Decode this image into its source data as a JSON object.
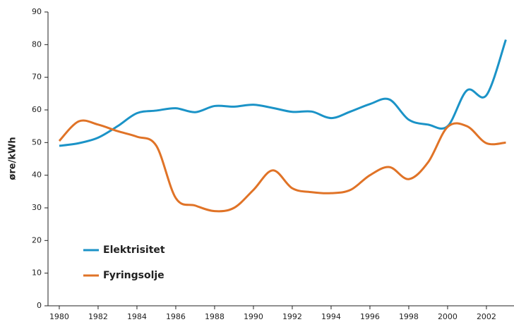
{
  "chart_data": {
    "type": "line",
    "y_label": "øre/kWh",
    "x": [
      1980,
      1981,
      1982,
      1983,
      1984,
      1985,
      1986,
      1987,
      1988,
      1989,
      1990,
      1991,
      1992,
      1993,
      1994,
      1995,
      1996,
      1997,
      1998,
      1999,
      2000,
      2001,
      2002,
      2003
    ],
    "series": [
      {
        "name": "Elektrisitet",
        "color": "#1b93c7",
        "values": [
          49,
          49.8,
          51.5,
          55,
          59,
          59.8,
          60.5,
          59.3,
          61.2,
          61,
          61.6,
          60.6,
          59.4,
          59.5,
          57.5,
          59.5,
          61.8,
          63.2,
          57,
          55.5,
          55,
          66,
          64.5,
          81.5
        ]
      },
      {
        "name": "Fyringsolje",
        "color": "#e07327",
        "values": [
          50.5,
          56.5,
          55.5,
          53.5,
          51.8,
          49,
          33,
          30.7,
          29,
          30,
          35.5,
          41.5,
          36,
          34.8,
          34.5,
          35.5,
          40,
          42.5,
          38.8,
          44,
          54.8,
          55,
          49.8,
          50
        ]
      }
    ],
    "xlim": [
      1979.42,
      2003.42
    ],
    "xticks": [
      1980,
      1982,
      1984,
      1986,
      1988,
      1990,
      1992,
      1994,
      1996,
      1998,
      2000,
      2002
    ],
    "ylim": [
      0,
      90
    ],
    "yticks": [
      0,
      10,
      20,
      30,
      40,
      50,
      60,
      70,
      80,
      90
    ],
    "legend": "lower left"
  }
}
